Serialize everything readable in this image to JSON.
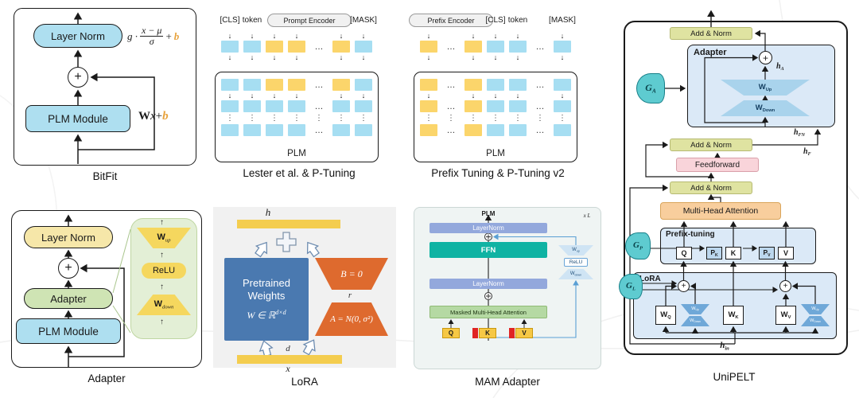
{
  "bitfit": {
    "caption": "BitFit",
    "layer_norm": "Layer Norm",
    "plus": "+",
    "plm_module": "PLM Module",
    "formula": {
      "g": "g ·",
      "num": "x − μ",
      "den": "σ",
      "plus": "+",
      "b": "b"
    },
    "wxb": {
      "w": "W",
      "x": "x",
      "plus": "+",
      "b": "b"
    }
  },
  "lester": {
    "caption": "Lester et al. & P-Tuning",
    "cls": "[CLS]",
    "token": "token",
    "encoder": "Prompt Encoder",
    "mask": "[MASK]",
    "plm": "PLM",
    "grid_top": [
      "aaaa.aa",
      "bbyy.yb",
      "aaaa.aa"
    ],
    "grid_inner": [
      "bbyy.yb",
      "aaaa.aa",
      "bbbb.bb",
      "vvvvvvv",
      "bbbb.bb"
    ]
  },
  "prefix": {
    "caption": "Prefix Tuning & P-Tuning v2",
    "encoder": "Prefix Encoder",
    "cls": "[CLS]",
    "token": "token",
    "mask": "[MASK]",
    "plm": "PLM",
    "grid_top": [
      "a.aaa.a",
      "y.ybb.b",
      "a.aaa.a"
    ],
    "grid_inner": [
      "y.ybb.b",
      "a.aaa.a",
      "y.ybb.b",
      "vvvvvvv",
      "y.ybb.b"
    ]
  },
  "adapter": {
    "caption": "Adapter",
    "layer_norm": "Layer Norm",
    "plus": "+",
    "adapter": "Adapter",
    "plm_module": "PLM Module",
    "w_up": {
      "base": "W",
      "sub": "up"
    },
    "relu": "ReLU",
    "w_down": {
      "base": "W",
      "sub": "down"
    }
  },
  "lora": {
    "caption": "LoRA",
    "h": "h",
    "x": "x",
    "pretrained_line1": "Pretrained",
    "pretrained_line2": "Weights",
    "w_formula": "W ∈ ℝ",
    "w_sup": "d×d",
    "b_label": "B = 0",
    "r": "r",
    "a_label": "A = N(0, σ²)",
    "d": "d"
  },
  "mam": {
    "caption": "MAM Adapter",
    "plm": "PLM",
    "xl": "x L",
    "layernorm": "LayerNorm",
    "ffn": "FFN",
    "mha": "Masked Multi-Head Attention",
    "q": "Q",
    "k": "K",
    "v": "V",
    "relu": "ReLU",
    "w_up": {
      "base": "W",
      "sub": "up"
    },
    "w_down": {
      "base": "W",
      "sub": "down"
    }
  },
  "unipelt": {
    "caption": "UniPELT",
    "add_norm": "Add & Norm",
    "adapter": "Adapter",
    "plus": "+",
    "h": "h",
    "h_a_sub": "A",
    "h_fn_sub": "FN",
    "h_f_sub": "F",
    "h_in_sub": "in",
    "w": "W",
    "up_sub": "Up",
    "down_sub": "Down",
    "g": "G",
    "g_a_sub": "A",
    "g_p_sub": "P",
    "g_l_sub": "L",
    "feedforward": "Feedforward",
    "mha": "Multi-Head Attention",
    "prefix_tuning": "Prefix-tuning",
    "q": "Q",
    "k": "K",
    "v": "V",
    "p": "P",
    "p_k_sub": "K",
    "p_v_sub": "V",
    "lora": "LoRA",
    "w_q_sub": "Q",
    "w_k_sub": "K",
    "w_v_sub": "V"
  }
}
